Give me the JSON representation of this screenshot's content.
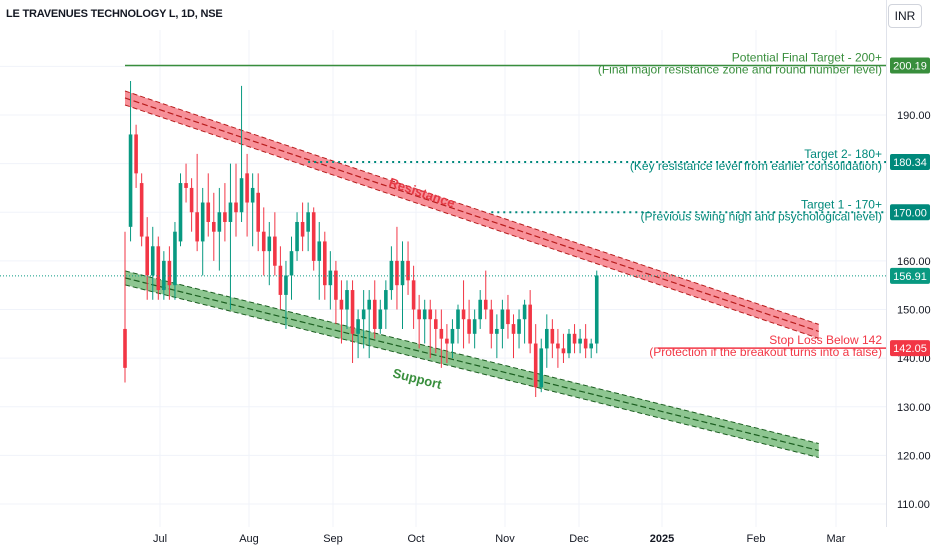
{
  "header": {
    "ticker": "LE TRAVENUES TECHNOLOGY L, 1D, NSE",
    "currency": "INR"
  },
  "chart_data": {
    "type": "candlestick",
    "x_ticks": [
      "Jul",
      "Aug",
      "Sep",
      "Oct",
      "Nov",
      "Dec",
      "2025",
      "Feb",
      "Mar"
    ],
    "y_ticks": [
      110,
      120,
      130,
      140,
      150,
      160,
      190
    ],
    "ylim": [
      106,
      203
    ],
    "price_tags": [
      {
        "label": "200.19",
        "value": 200.19,
        "color": "#388e3c"
      },
      {
        "label": "180.34",
        "value": 180.34,
        "color": "#00897b"
      },
      {
        "label": "170.00",
        "value": 170.0,
        "color": "#00897b"
      },
      {
        "label": "156.91",
        "value": 156.91,
        "color": "#089981"
      },
      {
        "label": "142.05",
        "value": 142.05,
        "color": "#f23645"
      }
    ],
    "channel": {
      "resistance": {
        "label": "Resistance",
        "start": {
          "date_idx": 0,
          "value": 193.5
        },
        "end": {
          "date_idx": 125,
          "value": 145.5
        },
        "color": "#f23645"
      },
      "support": {
        "label": "Support",
        "start": {
          "date_idx": 0,
          "value": 156.5
        },
        "end": {
          "date_idx": 125,
          "value": 121.0
        },
        "color": "#43a047"
      }
    },
    "levels": [
      {
        "title": "Potential Final Target - 200+",
        "subtitle": "(Final major resistance zone and round number level)",
        "value": 200.19,
        "from_idx": 0,
        "style": "solid",
        "color": "#388e3c"
      },
      {
        "title": "Target 2- 180+",
        "subtitle": "(Key resistance level from earlier consolidation)",
        "value": 180.34,
        "from_idx": 33,
        "style": "dotted",
        "color": "#00897b"
      },
      {
        "title": "Target 1 - 170+",
        "subtitle": "(Previous swing high and psychological level)",
        "value": 170.0,
        "from_idx": 66,
        "style": "dotted",
        "color": "#00897b"
      },
      {
        "title": "Stop Loss Below 142",
        "subtitle": "(Protection if the breakout turns into a false)",
        "value": 142.05,
        "from_idx": 96,
        "style": "solid",
        "color": "#f23645"
      }
    ],
    "last_price": 156.91,
    "candles": [
      [
        146,
        166,
        135,
        138
      ],
      [
        167,
        197,
        164,
        186
      ],
      [
        186,
        188,
        175,
        178
      ],
      [
        176,
        178,
        163,
        165
      ],
      [
        165,
        169,
        152,
        157
      ],
      [
        157,
        167,
        152,
        163
      ],
      [
        163,
        165,
        152,
        154
      ],
      [
        154,
        162,
        152,
        160
      ],
      [
        160,
        163,
        152,
        155
      ],
      [
        155,
        168,
        152,
        166
      ],
      [
        164,
        178,
        163,
        176
      ],
      [
        176,
        180,
        172,
        175
      ],
      [
        175,
        177,
        166,
        170
      ],
      [
        170,
        182,
        162,
        164
      ],
      [
        164,
        175,
        157,
        172
      ],
      [
        172,
        178,
        165,
        168
      ],
      [
        168,
        174,
        160,
        166
      ],
      [
        166,
        175,
        158,
        170
      ],
      [
        170,
        176,
        164,
        168
      ],
      [
        168,
        180,
        150,
        172
      ],
      [
        172,
        180,
        165,
        170
      ],
      [
        170,
        196,
        168,
        177
      ],
      [
        178,
        182,
        165,
        172
      ],
      [
        172,
        178,
        163,
        175
      ],
      [
        174,
        178,
        162,
        166
      ],
      [
        166,
        171,
        157,
        162
      ],
      [
        162,
        168,
        155,
        165
      ],
      [
        165,
        170,
        157,
        159
      ],
      [
        159,
        163,
        150,
        153
      ],
      [
        153,
        160,
        146,
        157
      ],
      [
        157,
        165,
        152,
        162
      ],
      [
        162,
        170,
        160,
        168
      ],
      [
        168,
        172,
        162,
        165
      ],
      [
        166,
        172,
        162,
        170
      ],
      [
        170,
        171,
        158,
        160
      ],
      [
        160,
        168,
        152,
        164
      ],
      [
        164,
        166,
        152,
        155
      ],
      [
        155,
        162,
        150,
        158
      ],
      [
        158,
        160,
        147,
        152
      ],
      [
        152,
        156,
        143,
        150
      ],
      [
        150,
        156,
        146,
        154
      ],
      [
        154,
        156,
        139,
        145
      ],
      [
        145,
        150,
        140,
        148
      ],
      [
        148,
        154,
        142,
        150
      ],
      [
        150,
        154,
        140,
        152
      ],
      [
        152,
        156,
        144,
        146
      ],
      [
        146,
        152,
        145,
        150
      ],
      [
        150,
        156,
        146,
        154
      ],
      [
        154,
        163,
        152,
        160
      ],
      [
        160,
        167,
        150,
        155
      ],
      [
        155,
        164,
        146,
        160
      ],
      [
        160,
        164,
        153,
        156
      ],
      [
        156,
        159,
        146,
        150
      ],
      [
        150,
        153,
        142,
        148
      ],
      [
        148,
        152,
        143,
        150
      ],
      [
        150,
        152,
        140,
        148
      ],
      [
        148,
        150,
        141,
        146
      ],
      [
        146,
        150,
        138,
        144
      ],
      [
        144,
        147,
        139,
        143
      ],
      [
        143,
        148,
        140,
        146
      ],
      [
        146,
        151,
        143,
        150
      ],
      [
        150,
        156,
        142,
        148
      ],
      [
        148,
        152,
        143,
        145
      ],
      [
        145,
        150,
        142,
        148
      ],
      [
        148,
        154,
        146,
        152
      ],
      [
        152,
        158,
        148,
        150
      ],
      [
        150,
        152,
        142,
        145
      ],
      [
        145,
        149,
        140,
        146
      ],
      [
        146,
        152,
        142,
        150
      ],
      [
        150,
        153,
        144,
        147
      ],
      [
        147,
        149,
        140,
        145
      ],
      [
        145,
        150,
        142,
        148
      ],
      [
        148,
        152,
        143,
        151
      ],
      [
        151,
        154,
        141,
        143
      ],
      [
        143,
        147,
        132,
        134
      ],
      [
        134,
        144,
        133,
        142
      ],
      [
        142,
        149,
        138,
        146
      ],
      [
        146,
        148,
        140,
        143
      ],
      [
        143,
        146,
        138,
        142
      ],
      [
        142,
        145,
        139,
        141
      ],
      [
        141,
        146,
        140,
        145
      ],
      [
        145,
        147,
        141,
        143
      ],
      [
        143,
        146,
        141,
        144
      ],
      [
        144,
        147,
        140,
        142
      ],
      [
        142,
        144,
        140,
        143
      ],
      [
        143,
        158,
        141,
        157
      ]
    ]
  },
  "annotations": {
    "resistance_label": "Resistance",
    "support_label": "Support"
  }
}
